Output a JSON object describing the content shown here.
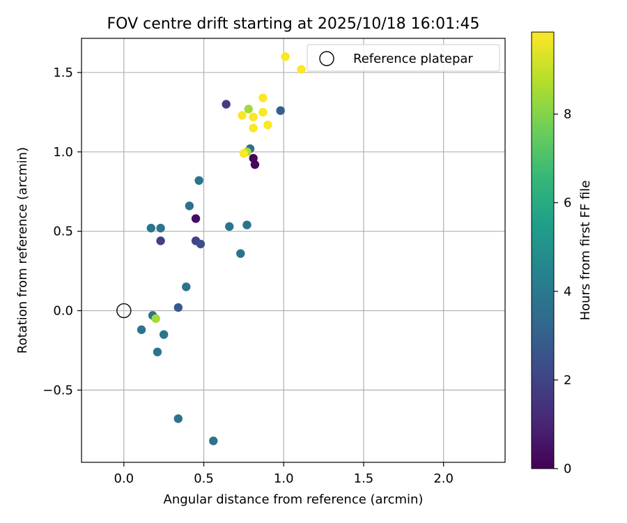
{
  "chart_data": {
    "type": "scatter",
    "title": "FOV centre drift starting at 2025/10/18 16:01:45",
    "xlabel": "Angular distance from reference (arcmin)",
    "ylabel": "Rotation from reference (arcmin)",
    "xlim": [
      -0.265,
      2.385
    ],
    "ylim": [
      -0.955,
      1.715
    ],
    "xticks": [
      0.0,
      0.5,
      1.0,
      1.5,
      2.0
    ],
    "xtick_labels": [
      "0.0",
      "0.5",
      "1.0",
      "1.5",
      "2.0"
    ],
    "yticks": [
      -0.5,
      0.0,
      0.5,
      1.0,
      1.5
    ],
    "ytick_labels": [
      "−0.5",
      "0.0",
      "0.5",
      "1.0",
      "1.5"
    ],
    "grid": true,
    "legend": {
      "position": "top-right",
      "entries": [
        "Reference platepar"
      ]
    },
    "reference_point": {
      "label": "Reference platepar",
      "x": 0.0,
      "y": 0.0
    },
    "colorbar": {
      "label": "Hours from first FF file",
      "range": [
        0,
        9.85
      ],
      "ticks": [
        0,
        2,
        4,
        6,
        8
      ],
      "tick_labels": [
        "0",
        "2",
        "4",
        "6",
        "8"
      ],
      "colormap": "viridis"
    },
    "colormap_stops": [
      "#440154",
      "#482878",
      "#3e4989",
      "#31688e",
      "#26828e",
      "#1f9e89",
      "#35b779",
      "#6ece58",
      "#b5de2b",
      "#fde725"
    ],
    "points": [
      {
        "x": 0.81,
        "y": 0.96,
        "hours": 0.1
      },
      {
        "x": 0.82,
        "y": 0.92,
        "hours": 0.2
      },
      {
        "x": 0.45,
        "y": 0.58,
        "hours": 0.4
      },
      {
        "x": 0.64,
        "y": 1.3,
        "hours": 1.8
      },
      {
        "x": 0.23,
        "y": 0.44,
        "hours": 1.9
      },
      {
        "x": 0.45,
        "y": 0.44,
        "hours": 2.0
      },
      {
        "x": 0.48,
        "y": 0.42,
        "hours": 2.4
      },
      {
        "x": 0.34,
        "y": 0.02,
        "hours": 2.8
      },
      {
        "x": 0.98,
        "y": 1.26,
        "hours": 3.0
      },
      {
        "x": 0.79,
        "y": 1.02,
        "hours": 3.6
      },
      {
        "x": 0.47,
        "y": 0.82,
        "hours": 3.8
      },
      {
        "x": 0.41,
        "y": 0.66,
        "hours": 3.7
      },
      {
        "x": 0.17,
        "y": 0.52,
        "hours": 3.8
      },
      {
        "x": 0.23,
        "y": 0.52,
        "hours": 3.8
      },
      {
        "x": 0.66,
        "y": 0.53,
        "hours": 3.8
      },
      {
        "x": 0.77,
        "y": 0.54,
        "hours": 3.8
      },
      {
        "x": 0.73,
        "y": 0.36,
        "hours": 3.8
      },
      {
        "x": 0.39,
        "y": 0.15,
        "hours": 3.8
      },
      {
        "x": 0.18,
        "y": -0.03,
        "hours": 3.8
      },
      {
        "x": 0.11,
        "y": -0.12,
        "hours": 3.8
      },
      {
        "x": 0.25,
        "y": -0.15,
        "hours": 3.8
      },
      {
        "x": 0.21,
        "y": -0.26,
        "hours": 3.8
      },
      {
        "x": 0.34,
        "y": -0.68,
        "hours": 3.8
      },
      {
        "x": 0.56,
        "y": -0.82,
        "hours": 3.8
      },
      {
        "x": 0.2,
        "y": -0.05,
        "hours": 8.5
      },
      {
        "x": 0.78,
        "y": 1.27,
        "hours": 8.5
      },
      {
        "x": 0.77,
        "y": 1.0,
        "hours": 8.6
      },
      {
        "x": 1.01,
        "y": 1.6,
        "hours": 9.8
      },
      {
        "x": 1.11,
        "y": 1.52,
        "hours": 9.8
      },
      {
        "x": 0.87,
        "y": 1.34,
        "hours": 9.8
      },
      {
        "x": 0.87,
        "y": 1.25,
        "hours": 9.8
      },
      {
        "x": 0.74,
        "y": 1.23,
        "hours": 9.8
      },
      {
        "x": 0.81,
        "y": 1.22,
        "hours": 9.8
      },
      {
        "x": 0.9,
        "y": 1.17,
        "hours": 9.8
      },
      {
        "x": 0.81,
        "y": 1.15,
        "hours": 9.8
      },
      {
        "x": 0.75,
        "y": 0.99,
        "hours": 9.8
      }
    ]
  }
}
